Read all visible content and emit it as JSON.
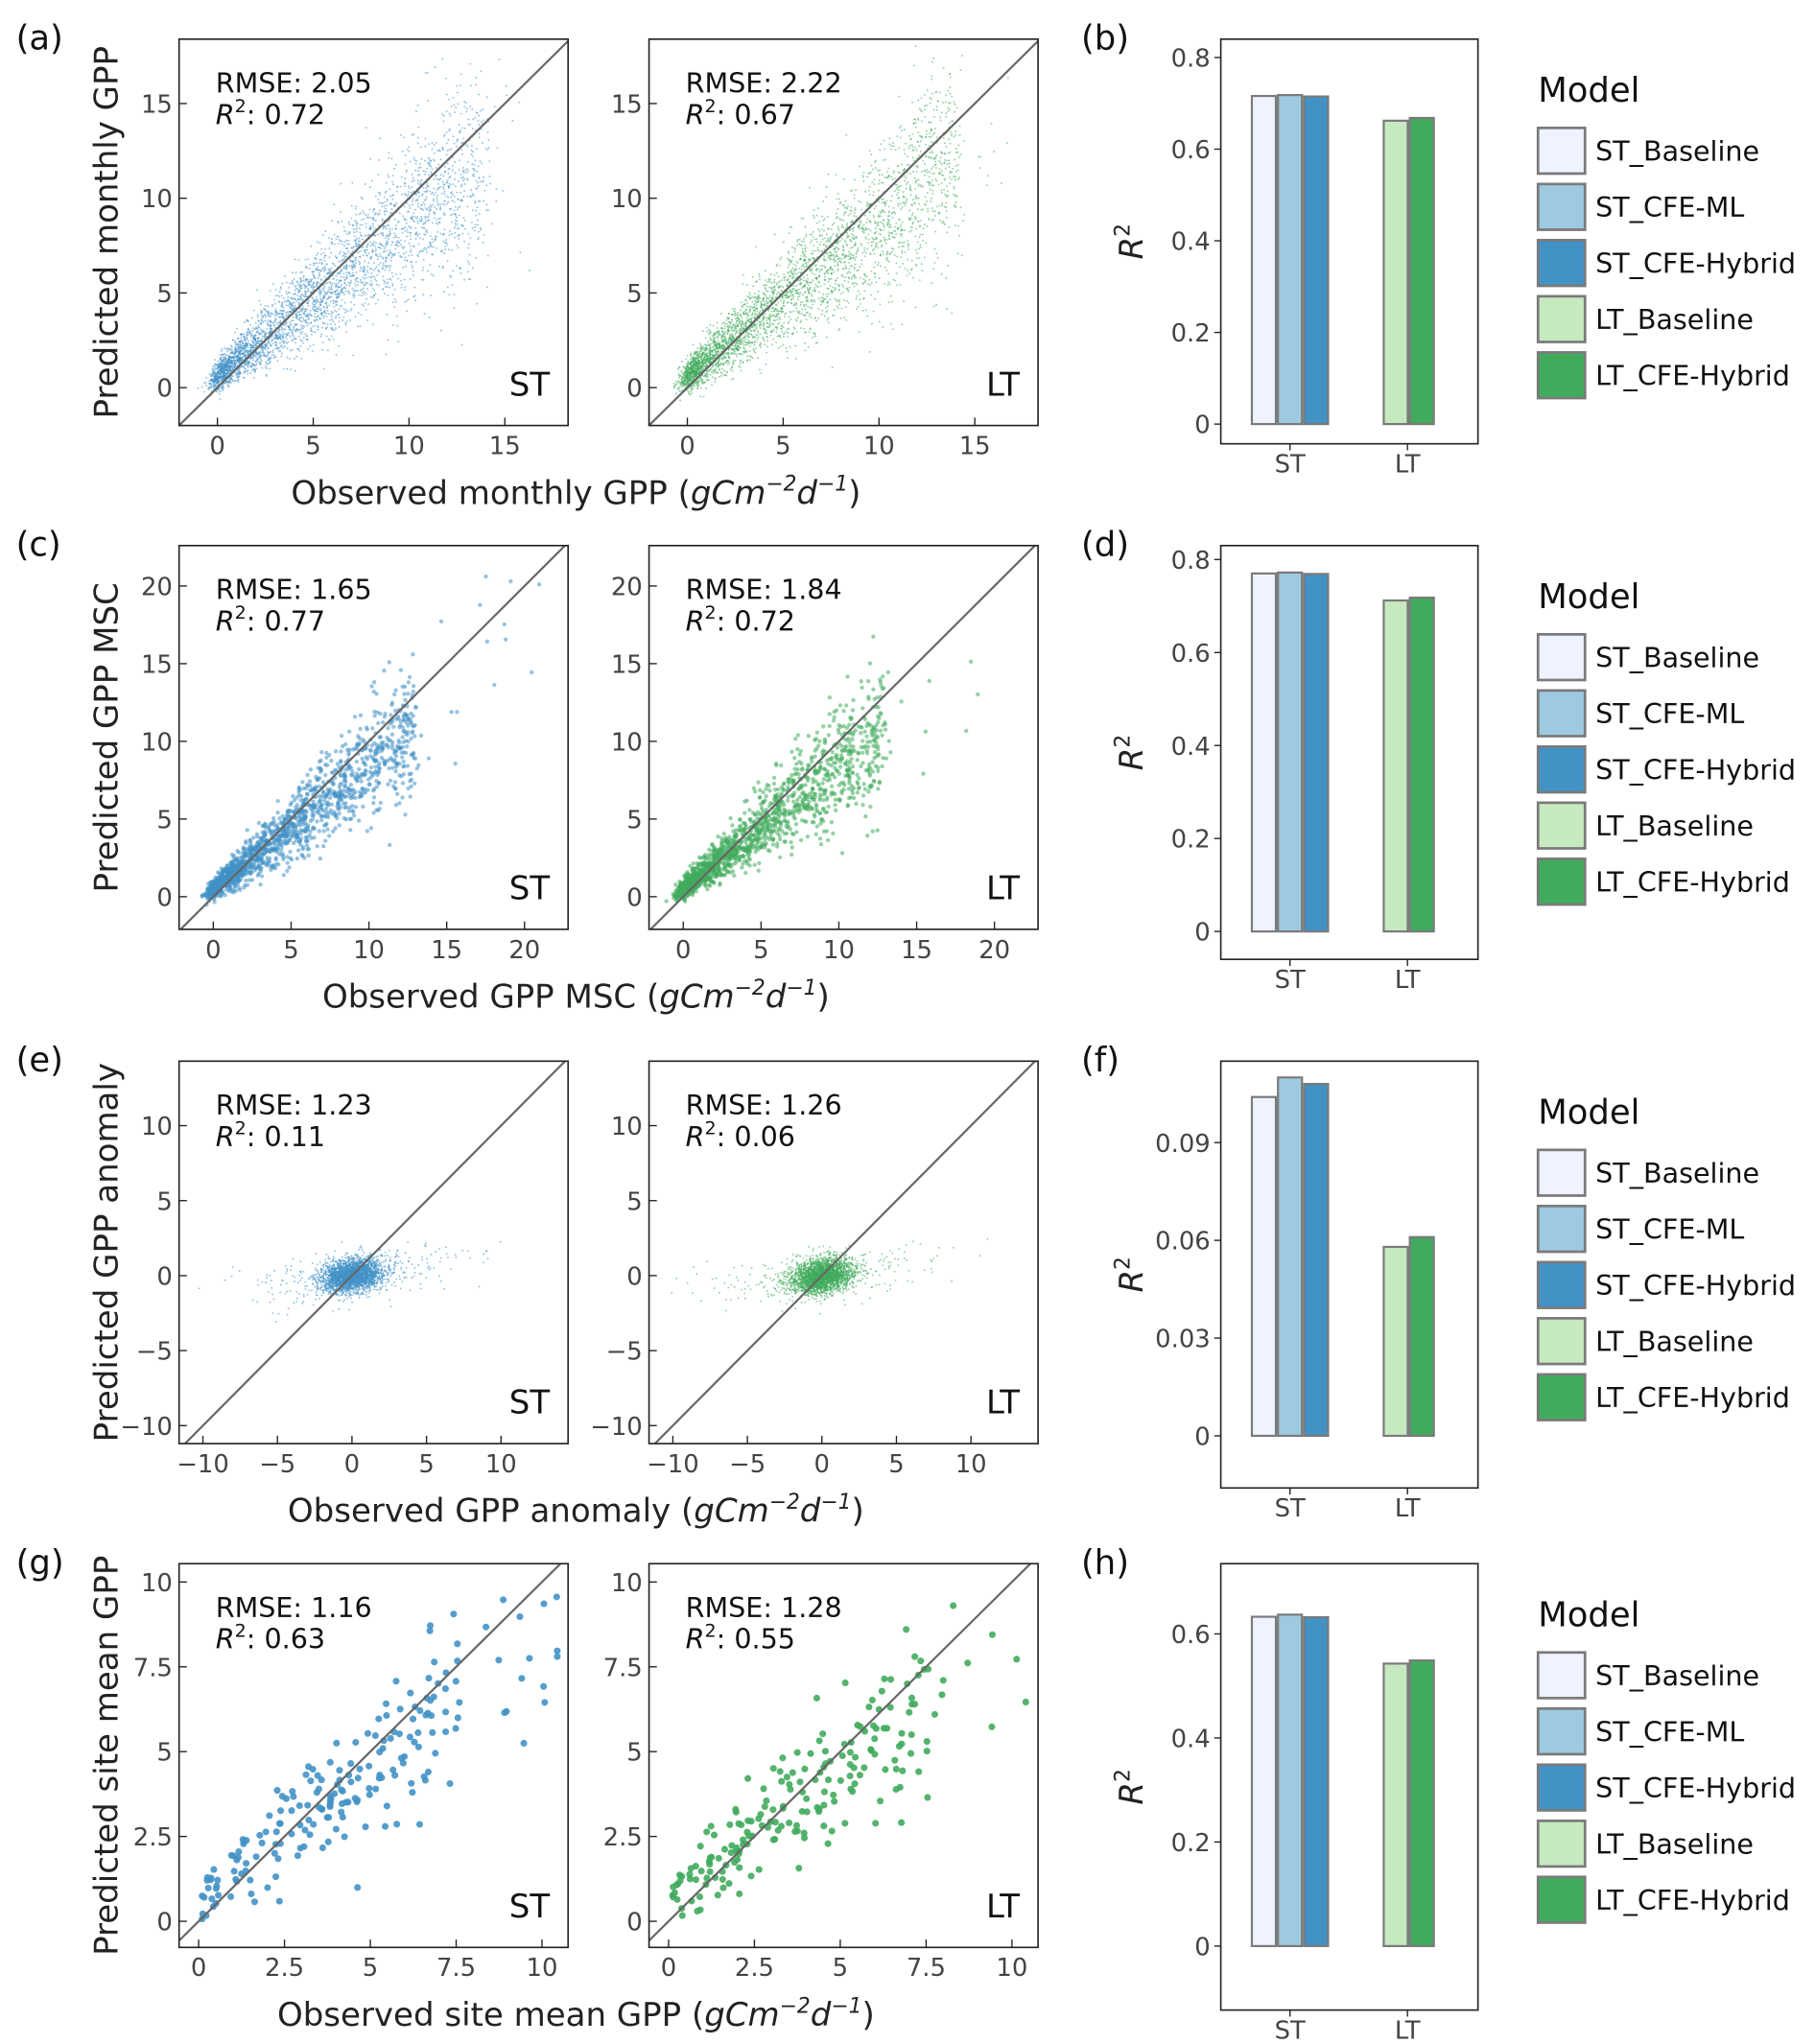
{
  "legend": {
    "title": "Model",
    "entries": [
      "ST_Baseline",
      "ST_CFE-ML",
      "ST_CFE-Hybrid",
      "LT_Baseline",
      "LT_CFE-Hybrid"
    ],
    "colors": [
      "#eff3ff",
      "#9ecae1",
      "#4292c6",
      "#c7e9c0",
      "#41ab5d"
    ],
    "edge_color": "#7a7a7a"
  },
  "units": {
    "base": "gCm",
    "exp1": "−2",
    "d": "d",
    "exp2": "−1"
  },
  "colors": {
    "ST": "#4292c6",
    "LT": "#41ab5d",
    "identity_line": "#666666"
  },
  "chart_data": [
    {
      "row": 0,
      "scatter": [
        {
          "panel_label": "(a)",
          "type": "scatter",
          "group": "ST",
          "rmse_text": "RMSE: 2.05",
          "r2_label": "R",
          "r2_value": ": 0.72",
          "xlim": [
            -2,
            18.3
          ],
          "ylim": [
            -2,
            18.4
          ],
          "xticks": [
            0,
            5,
            10,
            15
          ],
          "yticks": [
            0,
            5,
            10,
            15
          ],
          "ylabel": "Predicted monthly GPP",
          "identity_line": true,
          "kind": "monthly"
        },
        {
          "panel_label": "",
          "type": "scatter",
          "group": "LT",
          "rmse_text": "RMSE: 2.22",
          "r2_label": "R",
          "r2_value": ": 0.67",
          "xlim": [
            -2,
            18.3
          ],
          "ylim": [
            -2,
            18.4
          ],
          "xticks": [
            0,
            5,
            10,
            15
          ],
          "yticks": [
            0,
            5,
            10,
            15
          ],
          "ylabel": "",
          "identity_line": true,
          "kind": "monthly"
        }
      ],
      "xlabel": "Observed monthly GPP",
      "bar": {
        "panel_label": "(b)",
        "type": "bar",
        "ylabel": "R",
        "categories": [
          "ST",
          "LT"
        ],
        "ylim": [
          -0.043,
          0.84
        ],
        "yticks": [
          0,
          0.2,
          0.4,
          0.6,
          0.8
        ],
        "ytick_labels": [
          "0",
          "0.2",
          "0.4",
          "0.6",
          "0.8"
        ],
        "series": [
          {
            "name": "ST_Baseline",
            "category": "ST",
            "value": 0.716
          },
          {
            "name": "ST_CFE-ML",
            "category": "ST",
            "value": 0.718
          },
          {
            "name": "ST_CFE-Hybrid",
            "category": "ST",
            "value": 0.715
          },
          {
            "name": "LT_Baseline",
            "category": "LT",
            "value": 0.662
          },
          {
            "name": "LT_CFE-Hybrid",
            "category": "LT",
            "value": 0.668
          }
        ]
      }
    },
    {
      "row": 1,
      "scatter": [
        {
          "panel_label": "(c)",
          "type": "scatter",
          "group": "ST",
          "rmse_text": "RMSE: 1.65",
          "r2_label": "R",
          "r2_value": ": 0.77",
          "xlim": [
            -2.2,
            22.8
          ],
          "ylim": [
            -2.1,
            22.6
          ],
          "xticks": [
            0,
            5,
            10,
            15,
            20
          ],
          "yticks": [
            0,
            5,
            10,
            15,
            20
          ],
          "ylabel": "Predicted GPP MSC",
          "identity_line": true,
          "kind": "msc"
        },
        {
          "panel_label": "",
          "type": "scatter",
          "group": "LT",
          "rmse_text": "RMSE: 1.84",
          "r2_label": "R",
          "r2_value": ": 0.72",
          "xlim": [
            -2.2,
            22.8
          ],
          "ylim": [
            -2.1,
            22.6
          ],
          "xticks": [
            0,
            5,
            10,
            15,
            20
          ],
          "yticks": [
            0,
            5,
            10,
            15,
            20
          ],
          "ylabel": "",
          "identity_line": true,
          "kind": "msc"
        }
      ],
      "xlabel": "Observed GPP MSC",
      "bar": {
        "panel_label": "(d)",
        "type": "bar",
        "ylabel": "R",
        "categories": [
          "ST",
          "LT"
        ],
        "ylim": [
          -0.06,
          0.83
        ],
        "yticks": [
          0,
          0.2,
          0.4,
          0.6,
          0.8
        ],
        "ytick_labels": [
          "0",
          "0.2",
          "0.4",
          "0.6",
          "0.8"
        ],
        "series": [
          {
            "name": "ST_Baseline",
            "category": "ST",
            "value": 0.77
          },
          {
            "name": "ST_CFE-ML",
            "category": "ST",
            "value": 0.772
          },
          {
            "name": "ST_CFE-Hybrid",
            "category": "ST",
            "value": 0.769
          },
          {
            "name": "LT_Baseline",
            "category": "LT",
            "value": 0.712
          },
          {
            "name": "LT_CFE-Hybrid",
            "category": "LT",
            "value": 0.718
          }
        ]
      }
    },
    {
      "row": 2,
      "scatter": [
        {
          "panel_label": "(e)",
          "type": "scatter",
          "group": "ST",
          "rmse_text": "RMSE: 1.23",
          "r2_label": "R",
          "r2_value": ": 0.11",
          "xlim": [
            -11.6,
            14.5
          ],
          "ylim": [
            -11.2,
            14.3
          ],
          "xticks": [
            -10,
            -5,
            0,
            5,
            10
          ],
          "yticks": [
            -10,
            -5,
            0,
            5,
            10
          ],
          "ylabel": "Predicted GPP anomaly",
          "identity_line": true,
          "kind": "anomaly"
        },
        {
          "panel_label": "",
          "type": "scatter",
          "group": "LT",
          "rmse_text": "RMSE: 1.26",
          "r2_label": "R",
          "r2_value": ": 0.06",
          "xlim": [
            -11.6,
            14.5
          ],
          "ylim": [
            -11.2,
            14.3
          ],
          "xticks": [
            -10,
            -5,
            0,
            5,
            10
          ],
          "yticks": [
            -10,
            -5,
            0,
            5,
            10
          ],
          "ylabel": "",
          "identity_line": true,
          "kind": "anomaly"
        }
      ],
      "xlabel": "Observed GPP anomaly",
      "bar": {
        "panel_label": "(f)",
        "type": "bar",
        "ylabel": "R",
        "categories": [
          "ST",
          "LT"
        ],
        "ylim": [
          -0.016,
          0.115
        ],
        "yticks": [
          0,
          0.03,
          0.06,
          0.09
        ],
        "ytick_labels": [
          "0",
          "0.03",
          "0.06",
          "0.09"
        ],
        "series": [
          {
            "name": "ST_Baseline",
            "category": "ST",
            "value": 0.104
          },
          {
            "name": "ST_CFE-ML",
            "category": "ST",
            "value": 0.11
          },
          {
            "name": "ST_CFE-Hybrid",
            "category": "ST",
            "value": 0.108
          },
          {
            "name": "LT_Baseline",
            "category": "LT",
            "value": 0.058
          },
          {
            "name": "LT_CFE-Hybrid",
            "category": "LT",
            "value": 0.061
          }
        ]
      }
    },
    {
      "row": 3,
      "scatter": [
        {
          "panel_label": "(g)",
          "type": "scatter",
          "group": "ST",
          "rmse_text": "RMSE: 1.16",
          "r2_label": "R",
          "r2_value": ": 0.63",
          "xlim": [
            -0.57,
            10.76
          ],
          "ylim": [
            -0.77,
            10.54
          ],
          "xticks": [
            0,
            2.5,
            5,
            7.5,
            10
          ],
          "yticks": [
            0,
            2.5,
            5,
            7.5,
            10
          ],
          "ylabel": "Predicted site mean GPP",
          "identity_line": true,
          "kind": "site"
        },
        {
          "panel_label": "",
          "type": "scatter",
          "group": "LT",
          "rmse_text": "RMSE: 1.28",
          "r2_label": "R",
          "r2_value": ": 0.55",
          "xlim": [
            -0.57,
            10.76
          ],
          "ylim": [
            -0.77,
            10.54
          ],
          "xticks": [
            0,
            2.5,
            5,
            7.5,
            10
          ],
          "yticks": [
            0,
            2.5,
            5,
            7.5,
            10
          ],
          "ylabel": "",
          "identity_line": true,
          "kind": "site"
        }
      ],
      "xlabel": "Observed site mean GPP",
      "bar": {
        "panel_label": "(h)",
        "type": "bar",
        "ylabel": "R",
        "categories": [
          "ST",
          "LT"
        ],
        "ylim": [
          -0.123,
          0.735
        ],
        "yticks": [
          0,
          0.2,
          0.4,
          0.6
        ],
        "ytick_labels": [
          "0",
          "0.2",
          "0.4",
          "0.6"
        ],
        "series": [
          {
            "name": "ST_Baseline",
            "category": "ST",
            "value": 0.633
          },
          {
            "name": "ST_CFE-ML",
            "category": "ST",
            "value": 0.637
          },
          {
            "name": "ST_CFE-Hybrid",
            "category": "ST",
            "value": 0.632
          },
          {
            "name": "LT_Baseline",
            "category": "LT",
            "value": 0.543
          },
          {
            "name": "LT_CFE-Hybrid",
            "category": "LT",
            "value": 0.549
          }
        ]
      }
    }
  ]
}
